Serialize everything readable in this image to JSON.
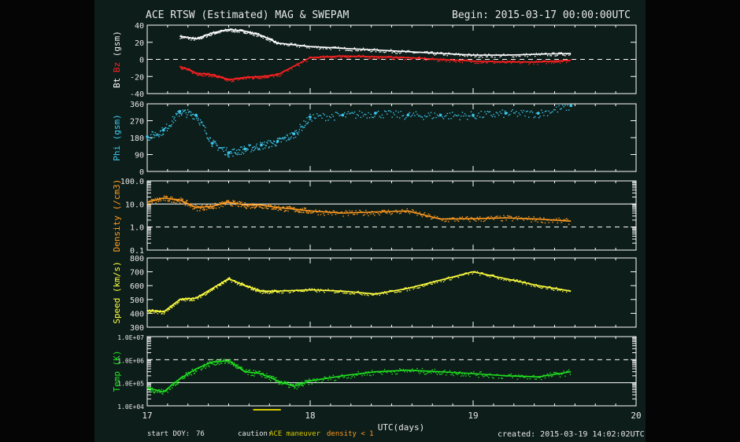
{
  "header": {
    "title": "ACE RTSW (Estimated) MAG & SWEPAM",
    "begin": "Begin: 2015-03-17 00:00:00UTC"
  },
  "footer": {
    "start_doy_label": "start DOY:",
    "start_doy_value": "76",
    "caution_label": "caution:",
    "caution_maneuver": "ACE maneuver",
    "caution_density": "density < 1",
    "created": "created: 2015-03-19 14:02:02UTC"
  },
  "colors": {
    "bt": "#ffffff",
    "bz": "#ff2020",
    "phi": "#3cc8f0",
    "density": "#ff9a20",
    "speed": "#ffff40",
    "temp": "#20e020",
    "frame": "#ffffff",
    "maneuver": "#d8c800"
  },
  "chart_data": [
    {
      "type": "line",
      "panel": "mag",
      "xlabel": "",
      "ylabel": "Bt Bz (gsm)",
      "ylabel_parts": [
        "Bt",
        "Bz",
        "(gsm)"
      ],
      "ylim": [
        -40,
        40
      ],
      "yticks": [
        "40",
        "20",
        "0",
        "-20",
        "-40"
      ],
      "reference_lines": [
        {
          "y": 0,
          "style": "dashed"
        }
      ],
      "x": [
        17.2,
        17.3,
        17.4,
        17.5,
        17.6,
        17.7,
        17.8,
        18.0,
        18.2,
        18.4,
        18.6,
        18.8,
        19.0,
        19.2,
        19.4,
        19.6
      ],
      "series": [
        {
          "name": "Bt",
          "values": [
            27,
            24,
            31,
            35,
            33,
            28,
            19,
            15,
            13,
            11,
            9,
            7,
            5,
            5,
            6,
            7
          ]
        },
        {
          "name": "Bz",
          "values": [
            -8,
            -16,
            -18,
            -24,
            -21,
            -20,
            -18,
            2,
            4,
            3,
            2,
            0,
            -2,
            -3,
            -3,
            -1
          ]
        }
      ]
    },
    {
      "type": "scatter",
      "panel": "phi",
      "ylabel": "Phi (gsm)",
      "ylim": [
        0,
        360
      ],
      "yticks": [
        "360",
        "270",
        "180",
        "90",
        "0"
      ],
      "x": [
        17.0,
        17.1,
        17.2,
        17.3,
        17.4,
        17.5,
        17.6,
        17.7,
        17.8,
        17.9,
        18.0,
        18.2,
        18.4,
        18.6,
        18.8,
        19.0,
        19.2,
        19.4,
        19.6
      ],
      "series": [
        {
          "name": "Phi",
          "values": [
            185,
            220,
            320,
            300,
            150,
            100,
            120,
            140,
            160,
            200,
            290,
            300,
            310,
            300,
            300,
            300,
            310,
            310,
            350
          ]
        }
      ]
    },
    {
      "type": "line",
      "panel": "density",
      "ylabel": "Density (/cm3)",
      "yscale": "log",
      "ylim": [
        0.1,
        100
      ],
      "yticks": [
        "100.0",
        "10.0",
        "1.0",
        "0.1"
      ],
      "reference_lines": [
        {
          "y": 10,
          "style": "solid"
        },
        {
          "y": 1,
          "style": "dashed"
        }
      ],
      "x": [
        17.0,
        17.1,
        17.2,
        17.3,
        17.4,
        17.5,
        17.6,
        17.7,
        17.8,
        17.9,
        18.0,
        18.2,
        18.4,
        18.6,
        18.8,
        19.0,
        19.2,
        19.4,
        19.6
      ],
      "series": [
        {
          "name": "Density",
          "values": [
            12,
            18,
            15,
            7,
            8,
            12,
            9,
            9,
            7,
            6,
            5,
            4,
            4.5,
            5,
            2.2,
            2.3,
            2.5,
            2.2,
            1.8
          ]
        }
      ]
    },
    {
      "type": "line",
      "panel": "speed",
      "ylabel": "Speed (km/s)",
      "ylim": [
        300,
        800
      ],
      "yticks": [
        "800",
        "700",
        "600",
        "500",
        "400",
        "300"
      ],
      "x": [
        17.0,
        17.1,
        17.2,
        17.3,
        17.4,
        17.5,
        17.6,
        17.7,
        17.8,
        18.0,
        18.2,
        18.4,
        18.6,
        18.8,
        19.0,
        19.2,
        19.4,
        19.6
      ],
      "series": [
        {
          "name": "Speed",
          "values": [
            420,
            410,
            500,
            510,
            580,
            650,
            600,
            560,
            560,
            570,
            560,
            540,
            580,
            640,
            700,
            650,
            600,
            560
          ]
        }
      ]
    },
    {
      "type": "line",
      "panel": "temp",
      "ylabel": "Temp (K)",
      "yscale": "log",
      "ylim": [
        10000,
        10000000
      ],
      "yticks": [
        "1.0E+07",
        "1.0E+06",
        "1.0E+05",
        "1.0E+04"
      ],
      "reference_lines": [
        {
          "y": 1000000,
          "style": "dashed"
        },
        {
          "y": 100000,
          "style": "solid"
        }
      ],
      "x": [
        17.0,
        17.1,
        17.2,
        17.3,
        17.4,
        17.5,
        17.6,
        17.7,
        17.8,
        17.9,
        18.0,
        18.2,
        18.4,
        18.6,
        18.8,
        19.0,
        19.2,
        19.4,
        19.6
      ],
      "series": [
        {
          "name": "Temp",
          "values": [
            60000,
            40000,
            150000,
            400000,
            800000,
            900000,
            300000,
            250000,
            120000,
            70000,
            120000,
            200000,
            300000,
            350000,
            300000,
            250000,
            200000,
            180000,
            300000
          ]
        }
      ]
    },
    {
      "type": "axis",
      "xlabel": "UTC(days)",
      "xlim": [
        17,
        20
      ],
      "xticks": [
        "17",
        "18",
        "19",
        "20"
      ],
      "annotations": [
        {
          "text": "ACE maneuver",
          "x_range": [
            17.65,
            17.82
          ]
        }
      ]
    }
  ]
}
